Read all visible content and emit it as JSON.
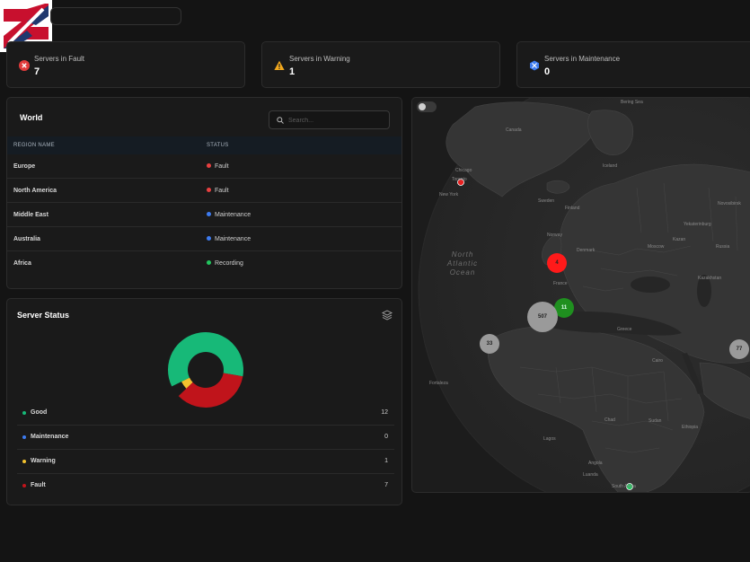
{
  "summary": {
    "fault": {
      "label": "Servers in Fault",
      "value": "7"
    },
    "warning": {
      "label": "Servers in Warning",
      "value": "1"
    },
    "maintenance": {
      "label": "Servers in Maintenance",
      "value": "0"
    }
  },
  "world": {
    "title": "World",
    "search_placeholder": "Search...",
    "columns": {
      "region": "REGION NAME",
      "status": "STATUS"
    },
    "rows": [
      {
        "region": "Europe",
        "status": "Fault",
        "color": "#e84040"
      },
      {
        "region": "North America",
        "status": "Fault",
        "color": "#e84040"
      },
      {
        "region": "Middle East",
        "status": "Maintenance",
        "color": "#3d7bf0"
      },
      {
        "region": "Australia",
        "status": "Maintenance",
        "color": "#3d7bf0"
      },
      {
        "region": "Africa",
        "status": "Recording",
        "color": "#22c55e"
      }
    ]
  },
  "server_status": {
    "title": "Server Status",
    "legend": [
      {
        "name": "Good",
        "value": "12",
        "color": "#17b978"
      },
      {
        "name": "Maintenance",
        "value": "0",
        "color": "#3d7bf0"
      },
      {
        "name": "Warning",
        "value": "1",
        "color": "#f2c12e"
      },
      {
        "name": "Fault",
        "value": "7",
        "color": "#c0141b"
      }
    ]
  },
  "map": {
    "labels": {
      "bering": "Bering Sea",
      "canada": "Canada",
      "chicago": "Chicago",
      "toronto": "Toronto",
      "newyork": "New York",
      "iceland": "Iceland",
      "sweden": "Sweden",
      "finland": "Finland",
      "norway": "Norway",
      "denmark": "Denmark",
      "france": "France",
      "moscow": "Moscow",
      "kazan": "Kazan",
      "russia": "Russia",
      "tokarinburg": "Yekaterinburg",
      "novosibirsk": "Novosibirsk",
      "kazakhstan": "Kazakhstan",
      "greece": "Greece",
      "cairo": "Cairo",
      "chad": "Chad",
      "sudan": "Sudan",
      "ethiopia": "Ethiopia",
      "angola": "Angola",
      "luanda": "Luanda",
      "lagos": "Lagos",
      "fortaleza": "Fortaleza",
      "southafrica": "South Africa"
    },
    "ocean": "North Atlantic Ocean",
    "clusters": [
      {
        "label": "4",
        "color": "#ff1a1a"
      },
      {
        "label": "11",
        "color": "#1f8f1f"
      },
      {
        "label": "507",
        "color": "#9a9a9a"
      },
      {
        "label": "33",
        "color": "#9a9a9a"
      },
      {
        "label": "77",
        "color": "#9a9a9a"
      }
    ]
  }
}
